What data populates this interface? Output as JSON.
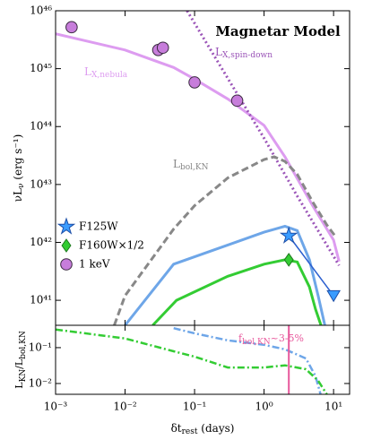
{
  "chart_data": [
    {
      "type": "line",
      "title": "Magnetar Model",
      "ylabel": {
        "main": "νL",
        "sub": "ν",
        "tail": " (erg s⁻¹)"
      },
      "log_x": true,
      "log_y": true,
      "xlim": [
        0.001,
        17
      ],
      "ylim": [
        3.7e+40,
        1e+46
      ],
      "yticks": [
        {
          "value": 1e+41,
          "label": "10⁴¹"
        },
        {
          "value": 1e+42,
          "label": "10⁴²"
        },
        {
          "value": 1e+43,
          "label": "10⁴³"
        },
        {
          "value": 1e+44,
          "label": "10⁴⁴"
        },
        {
          "value": 1e+45,
          "label": "10⁴⁵"
        },
        {
          "value": 1e+46,
          "label": "10⁴⁶"
        }
      ],
      "legend": "lower left",
      "series": [
        {
          "label": {
            "main": "L",
            "sub": "X,nebula"
          },
          "color": "#dd9cf0",
          "style": "solid",
          "x": [
            0.001,
            0.01,
            0.05,
            0.1,
            0.3,
            1,
            2,
            5,
            10,
            12
          ],
          "values": [
            4e+45,
            2.1e+45,
            1.05e+45,
            6.6e+44,
            3e+44,
            1.05e+44,
            3e+43,
            4.3e+42,
            1.1e+42,
            4.7e+41
          ]
        },
        {
          "label": {
            "main": "L",
            "sub": "X,spin-down"
          },
          "color": "#9b55b8",
          "style": "dotted",
          "x": [
            0.078,
            0.3,
            1,
            3,
            12
          ],
          "values": [
            1e+46,
            6.8e+44,
            6.3e+43,
            6.3e+42,
            4e+41
          ]
        },
        {
          "label": {
            "main": "L",
            "sub": "bol,KN"
          },
          "color": "#888888",
          "style": "dashed",
          "x": [
            0.007,
            0.01,
            0.05,
            0.1,
            0.3,
            1,
            1.4,
            2,
            3,
            5,
            8,
            11
          ],
          "values": [
            3.7e+40,
            1.2e+41,
            1.7e+42,
            4.3e+42,
            1.3e+43,
            2.7e+43,
            3e+43,
            2.5e+43,
            1.5e+43,
            5e+42,
            2e+42,
            1.2e+42
          ]
        },
        {
          "color": "#6ea6e8",
          "style": "solid",
          "x": [
            0.01,
            0.05,
            0.3,
            1,
            2,
            3,
            4.5,
            6,
            7.5
          ],
          "values": [
            3.7e+40,
            4.2e+41,
            9e+41,
            1.5e+42,
            1.9e+42,
            1.6e+42,
            5e+41,
            1.2e+41,
            3.7e+40
          ]
        },
        {
          "color": "#33cc33",
          "style": "solid",
          "x": [
            0.025,
            0.055,
            0.3,
            1,
            2,
            3,
            4.5,
            5.5,
            6.6
          ],
          "values": [
            3.7e+40,
            1e+41,
            2.6e+41,
            4.2e+41,
            5e+41,
            4.6e+41,
            1.7e+41,
            7e+40,
            3.7e+40
          ]
        }
      ],
      "points": [
        {
          "name": "F125W",
          "color": "#3a9cff",
          "edge": "#1d4fa8",
          "markers": [
            "star",
            "triangle-down"
          ],
          "connect": "#2b5fcf",
          "x": [
            2.27,
            10
          ],
          "values": [
            1.3e+42,
            1.2e+41
          ]
        },
        {
          "name": "F160W×1/2",
          "color": "#33cc33",
          "edge": "#1e7a1e",
          "markers": [
            "diamond"
          ],
          "x": [
            2.27
          ],
          "values": [
            5e+41
          ]
        },
        {
          "name": "1 keV",
          "color": "#c77ddb",
          "edge": "#3a2a40",
          "markers": [
            "circle",
            "circle",
            "circle",
            "circle",
            "circle"
          ],
          "x": [
            0.0017,
            0.03,
            0.035,
            0.1,
            0.41
          ],
          "values": [
            5.2e+45,
            2.1e+45,
            2.3e+45,
            5.8e+44,
            2.8e+44
          ]
        }
      ]
    },
    {
      "type": "line",
      "xlabel": {
        "main": "δt",
        "sub": "rest",
        "tail": " (days)"
      },
      "ylabel": {
        "main": "L",
        "sub": "KN",
        "mid": "/L",
        "sub2": "bol,KN"
      },
      "log_x": true,
      "log_y": true,
      "xlim": [
        0.001,
        17
      ],
      "ylim": [
        0.005,
        0.42
      ],
      "xticks": [
        {
          "value": 0.001,
          "label": "10⁻³"
        },
        {
          "value": 0.01,
          "label": "10⁻²"
        },
        {
          "value": 0.1,
          "label": "10⁻¹"
        },
        {
          "value": 1,
          "label": "10⁰"
        },
        {
          "value": 10,
          "label": "10¹"
        }
      ],
      "yticks": [
        {
          "value": 0.01,
          "label": "10⁻²"
        },
        {
          "value": 0.1,
          "label": "10⁻¹"
        }
      ],
      "vline": 2.27,
      "vline_color": "#e8589c",
      "annotation": {
        "main": "f",
        "sub": "bol,KN",
        "tail": "~3-5%"
      },
      "series": [
        {
          "color": "#6ea6e8",
          "style": "dashdot",
          "x": [
            0.05,
            0.1,
            0.3,
            1,
            2,
            4,
            5.5,
            6.5
          ],
          "values": [
            0.35,
            0.25,
            0.16,
            0.12,
            0.09,
            0.05,
            0.016,
            0.005
          ]
        },
        {
          "color": "#33cc33",
          "style": "dashdot",
          "x": [
            0.001,
            0.01,
            0.05,
            0.1,
            0.3,
            1,
            2,
            4,
            6,
            8
          ],
          "values": [
            0.32,
            0.18,
            0.079,
            0.056,
            0.028,
            0.028,
            0.032,
            0.025,
            0.012,
            0.005
          ]
        }
      ]
    }
  ]
}
